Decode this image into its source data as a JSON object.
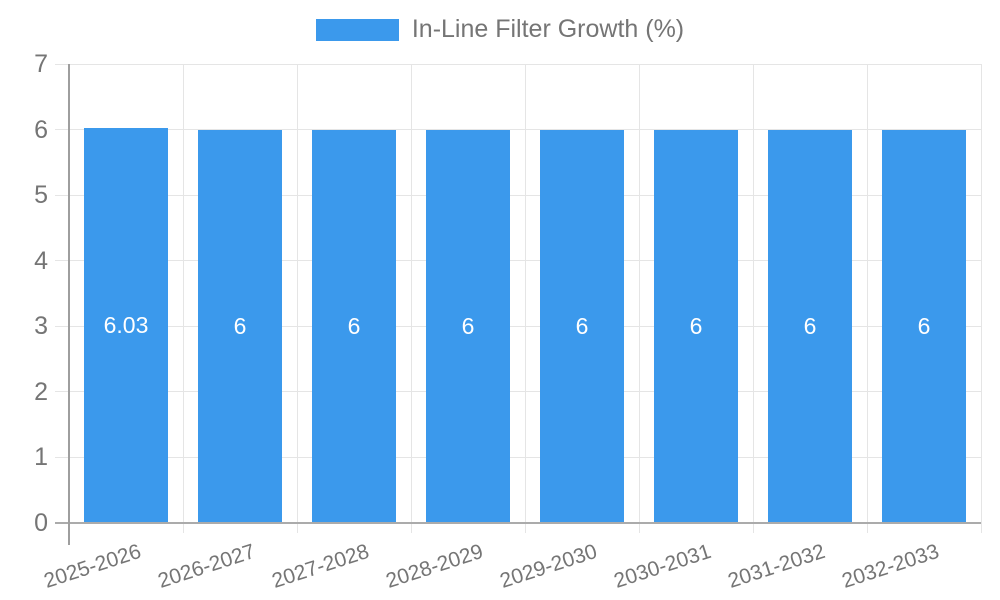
{
  "legend": {
    "label": "In-Line Filter Growth (%)",
    "swatch_color": "#3B99EC"
  },
  "chart_data": {
    "type": "bar",
    "title": "",
    "xlabel": "",
    "ylabel": "",
    "categories": [
      "2025-2026",
      "2026-2027",
      "2027-2028",
      "2028-2029",
      "2029-2030",
      "2030-2031",
      "2031-2032",
      "2032-2033"
    ],
    "series": [
      {
        "name": "In-Line Filter Growth (%)",
        "values": [
          6.03,
          6,
          6,
          6,
          6,
          6,
          6,
          6
        ],
        "data_labels": [
          "6.03",
          "6",
          "6",
          "6",
          "6",
          "6",
          "6",
          "6"
        ],
        "color": "#3B99EC"
      }
    ],
    "ylim": [
      0,
      7
    ],
    "yticks": [
      0,
      1,
      2,
      3,
      4,
      5,
      6,
      7
    ],
    "grid": true,
    "legend_position": "top",
    "x_tick_rotation_deg": -18,
    "data_label_color": "#ffffff"
  },
  "colors": {
    "bar": "#3B99EC",
    "grid_line": "#E5E5E5",
    "axis_line": "#9E9E9E",
    "baseline": "#ABABAB",
    "tick_text": "#757575",
    "legend_text": "#757575"
  }
}
